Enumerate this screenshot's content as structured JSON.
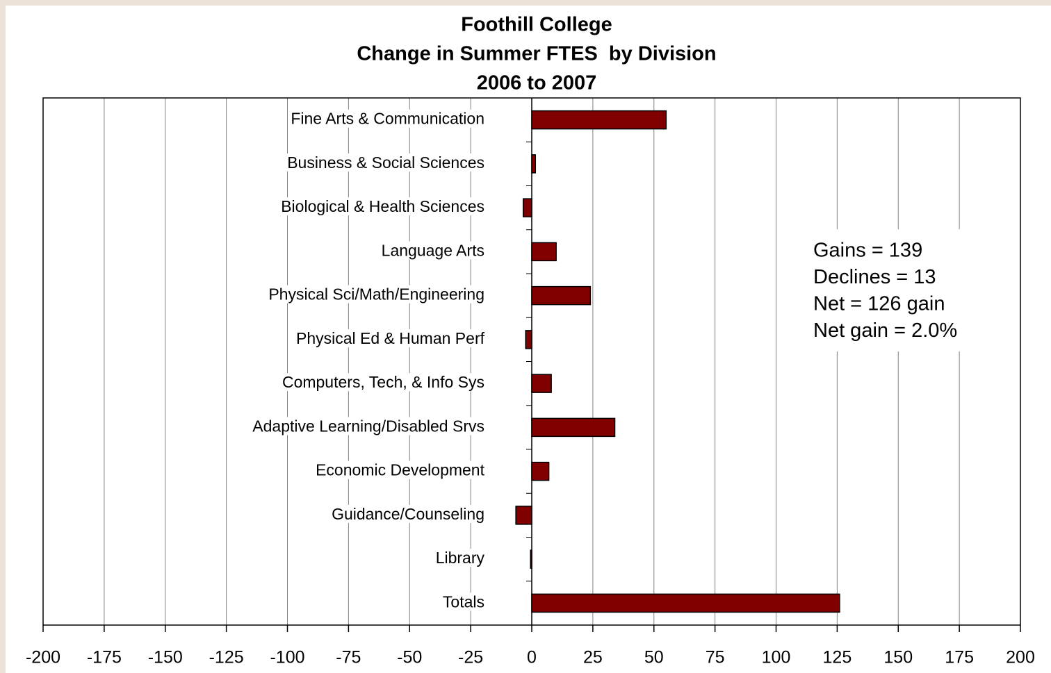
{
  "chart_data": {
    "type": "barh",
    "title": [
      "Foothill College",
      "Change in Summer FTES  by Division",
      "2006 to 2007"
    ],
    "categories": [
      "Fine Arts & Communication",
      "Business & Social Sciences",
      "Biological & Health Sciences",
      "Language Arts",
      "Physical Sci/Math/Engineering",
      "Physical Ed & Human Perf",
      "Computers, Tech, & Info Sys",
      "Adaptive Learning/Disabled Srvs",
      "Economic Development",
      "Guidance/Counseling",
      "Library",
      "Totals"
    ],
    "values": [
      55,
      1.5,
      -3.5,
      10,
      24,
      -2.5,
      8,
      34,
      7,
      -6.5,
      -0.5,
      126
    ],
    "color": "#800000",
    "xlim": [
      -200,
      200
    ],
    "xticks": [
      -200,
      -175,
      -150,
      -125,
      -100,
      -75,
      -50,
      -25,
      0,
      25,
      50,
      75,
      100,
      125,
      150,
      175,
      200
    ],
    "grid": true,
    "annotations": [
      "Gains = 139",
      "Declines = 13",
      "Net = 126 gain",
      "Net gain = 2.0%"
    ]
  }
}
